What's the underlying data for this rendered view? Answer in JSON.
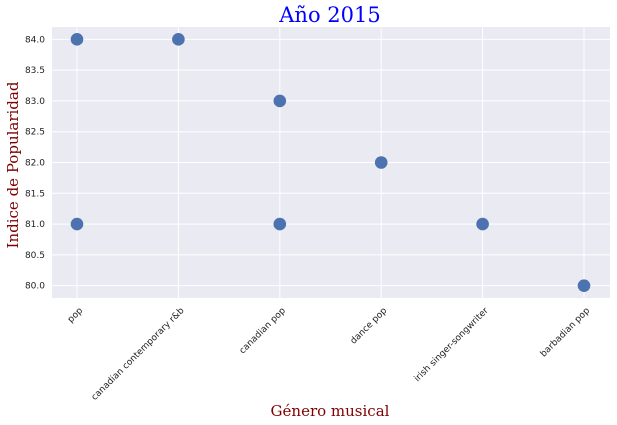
{
  "chart_data": {
    "type": "scatter",
    "title": "Año 2015",
    "xlabel": "Género musical",
    "ylabel": "Indice de Popularidad",
    "categories": [
      "pop",
      "canadian contemporary r&b",
      "canadian pop",
      "dance pop",
      "irish singer-songwriter",
      "barbadian pop"
    ],
    "points": [
      {
        "x": "pop",
        "y": 84.0
      },
      {
        "x": "pop",
        "y": 81.0
      },
      {
        "x": "canadian contemporary r&b",
        "y": 84.0
      },
      {
        "x": "canadian pop",
        "y": 83.0
      },
      {
        "x": "canadian pop",
        "y": 81.0
      },
      {
        "x": "dance pop",
        "y": 82.0
      },
      {
        "x": "irish singer-songwriter",
        "y": 81.0
      },
      {
        "x": "barbadian pop",
        "y": 80.0
      }
    ],
    "yticks": [
      "80.0",
      "80.5",
      "81.0",
      "81.5",
      "82.0",
      "82.5",
      "83.0",
      "83.5",
      "84.0"
    ],
    "ylim": [
      79.8,
      84.2
    ],
    "grid": true,
    "colors": {
      "marker": "#4c72b0",
      "background": "#eaeaf2",
      "grid": "#ffffff",
      "title": "#0000ff",
      "axis_label": "#800000"
    }
  }
}
